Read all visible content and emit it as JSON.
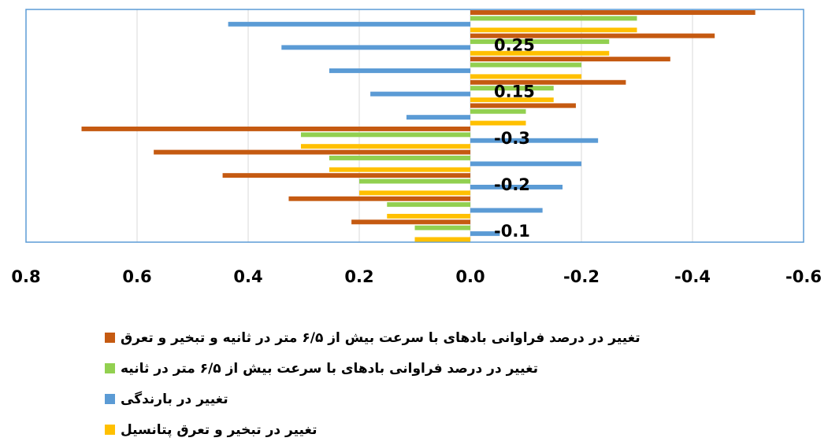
{
  "chart_data": {
    "type": "barh",
    "categories": [
      null,
      "0.25",
      null,
      "0.15",
      null,
      "-0.3",
      null,
      "-0.2",
      null,
      "-0.1"
    ],
    "series": [
      {
        "name": "تغییر در درصد فراوانی بادهای با سرعت بیش از ۶/۵ متر در ثانیه و تبخیر و تعرق",
        "color": "#c55a11",
        "values": [
          -0.513,
          -0.44,
          -0.36,
          -0.28,
          -0.19,
          0.7,
          0.57,
          0.446,
          0.327,
          0.214
        ]
      },
      {
        "name": "تغییر در درصد فراوانی بادهای با سرعت بیش از ۶/۵ متر در ثانیه",
        "color": "#92d050",
        "values": [
          -0.3,
          -0.25,
          -0.2,
          -0.15,
          -0.1,
          0.305,
          0.254,
          0.2,
          0.15,
          0.1
        ]
      },
      {
        "name": "تغییر در بارندگی",
        "color": "#5b9bd5",
        "values": [
          0.436,
          0.34,
          0.254,
          0.18,
          0.115,
          -0.23,
          -0.2,
          -0.166,
          -0.13,
          -0.053
        ]
      },
      {
        "name": "تغییر در تبخیر و تعرق پتانسیل",
        "color": "#ffc000",
        "values": [
          -0.3,
          -0.25,
          -0.2,
          -0.15,
          -0.1,
          0.305,
          0.254,
          0.2,
          0.15,
          0.1
        ]
      }
    ],
    "xlim": [
      0.8,
      -0.6
    ],
    "xticks": [
      0.8,
      0.6,
      0.4,
      0.2,
      {
        "value": 0,
        "label": "0.0"
      },
      -0.2,
      -0.4,
      -0.6
    ],
    "grid": true
  }
}
